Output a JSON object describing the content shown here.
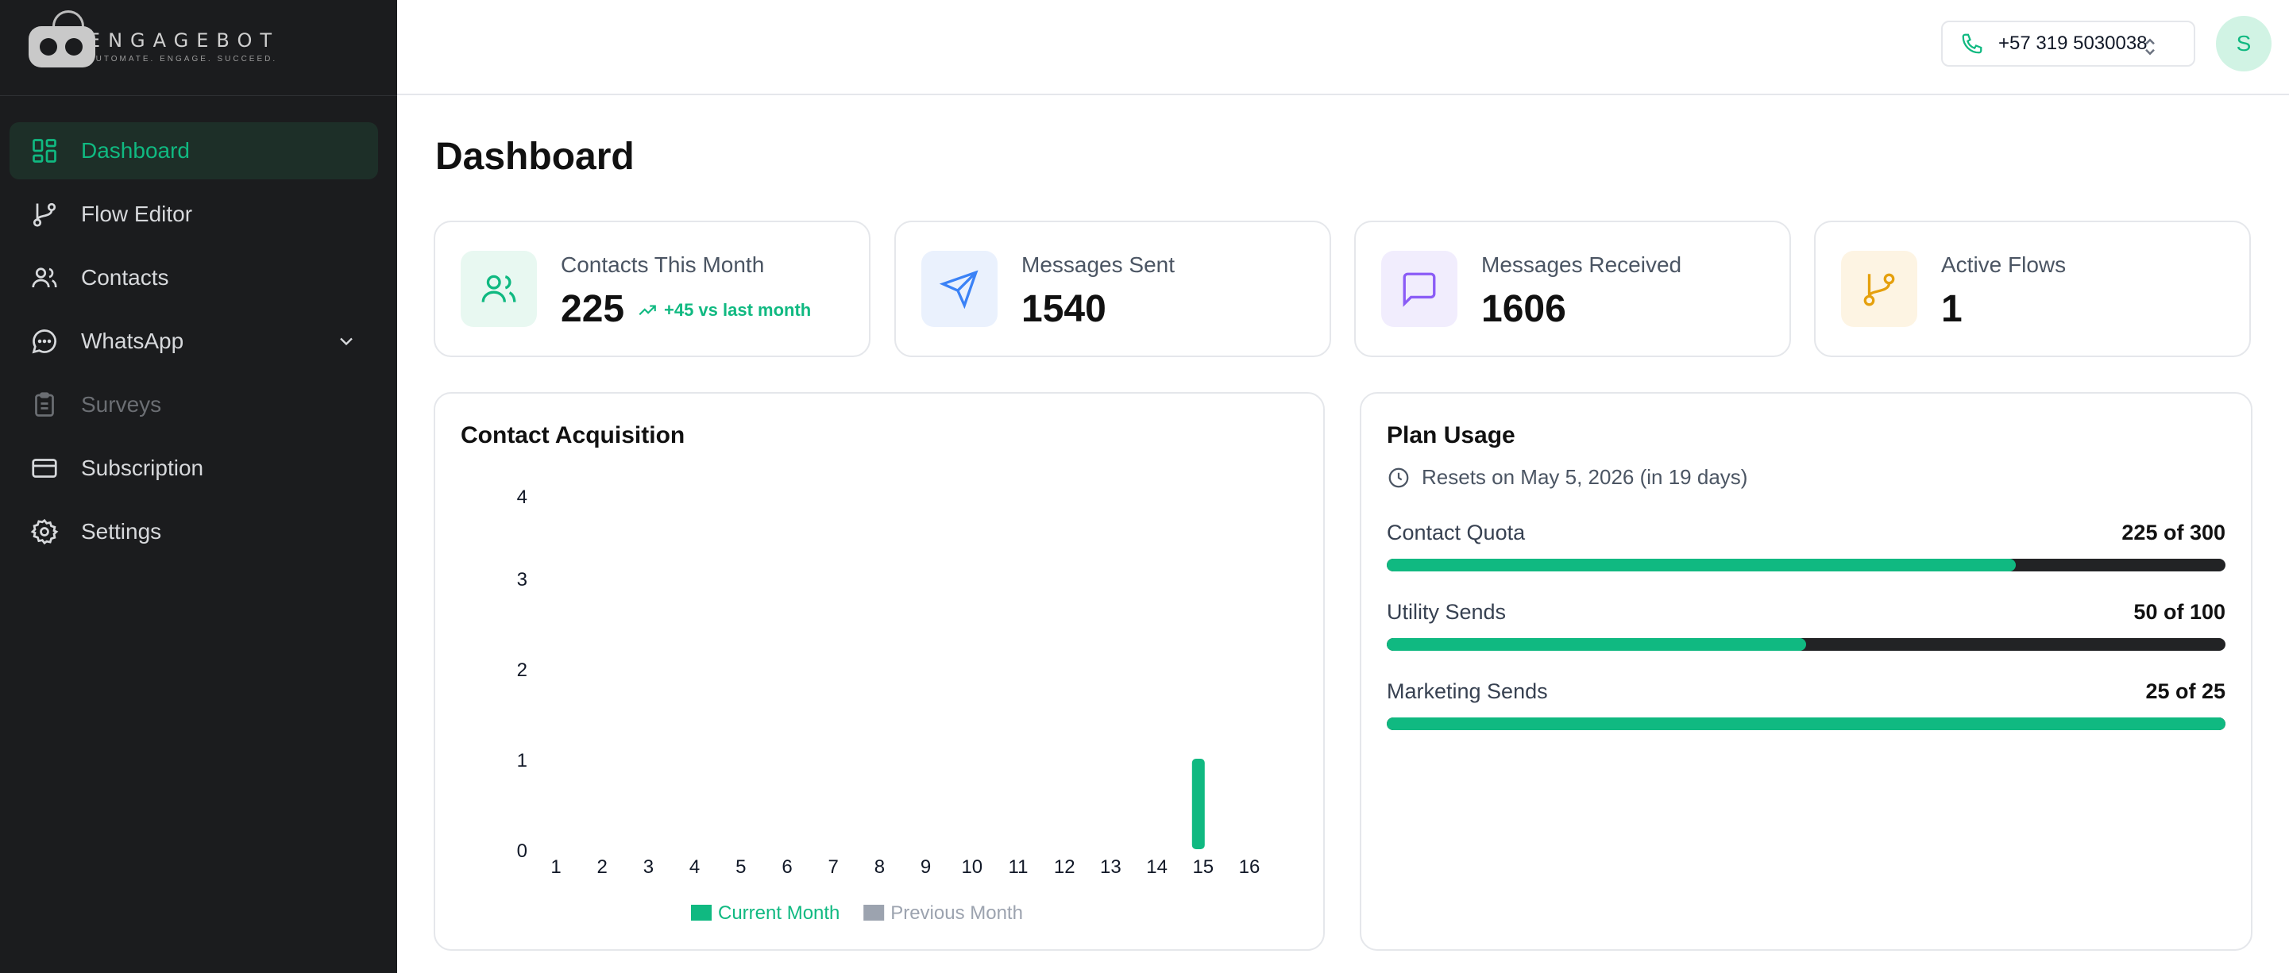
{
  "brand": {
    "name": "ENGAGEBOT",
    "tagline": "AUTOMATE. ENGAGE. SUCCEED."
  },
  "sidebar": {
    "items": [
      {
        "label": "Dashboard",
        "icon": "dashboard-icon",
        "active": true
      },
      {
        "label": "Flow Editor",
        "icon": "git-branch-icon"
      },
      {
        "label": "Contacts",
        "icon": "users-icon"
      },
      {
        "label": "WhatsApp",
        "icon": "chat-bubble-icon",
        "expandable": true
      },
      {
        "label": "Surveys",
        "icon": "clipboard-icon",
        "disabled": true
      },
      {
        "label": "Subscription",
        "icon": "credit-card-icon"
      },
      {
        "label": "Settings",
        "icon": "gear-icon"
      }
    ]
  },
  "header": {
    "phone": "+57 319 5030038",
    "avatar_initial": "S"
  },
  "page": {
    "title": "Dashboard"
  },
  "stats": [
    {
      "label": "Contacts This Month",
      "value": "225",
      "delta": "+45 vs last month",
      "icon": "users-icon",
      "color": "#10b981",
      "bg": "#e8f8f1"
    },
    {
      "label": "Messages Sent",
      "value": "1540",
      "icon": "send-icon",
      "color": "#3b82f6",
      "bg": "#eaf1fd"
    },
    {
      "label": "Messages Received",
      "value": "1606",
      "icon": "message-square-icon",
      "color": "#8b5cf6",
      "bg": "#f1edfd"
    },
    {
      "label": "Active Flows",
      "value": "1",
      "icon": "git-branch-icon",
      "color": "#e5a00d",
      "bg": "#fdf4e3"
    }
  ],
  "acquisition": {
    "title": "Contact Acquisition",
    "chart_data": {
      "type": "bar",
      "categories": [
        "1",
        "2",
        "3",
        "4",
        "5",
        "6",
        "7",
        "8",
        "9",
        "10",
        "11",
        "12",
        "13",
        "14",
        "15",
        "16"
      ],
      "series": [
        {
          "name": "Current Month",
          "values": [
            0,
            0,
            0,
            0,
            0,
            0,
            0,
            0,
            0,
            0,
            0,
            0,
            0,
            0,
            1,
            0
          ],
          "color": "#10b981"
        },
        {
          "name": "Previous Month",
          "values": [
            0,
            0,
            0,
            0,
            0,
            0,
            0,
            0,
            0,
            0,
            0,
            0,
            0,
            0,
            0,
            0
          ],
          "color": "#9ca3af"
        }
      ],
      "y_ticks": [
        "0",
        "1",
        "2",
        "3",
        "4"
      ],
      "ylim": [
        0,
        4
      ],
      "legend": "bottom",
      "grid": false
    }
  },
  "plan": {
    "title": "Plan Usage",
    "reset_text": "Resets on May 5, 2026 (in 19 days)",
    "rows": [
      {
        "label": "Contact Quota",
        "value": "225 of 300",
        "fraction": 0.75
      },
      {
        "label": "Utility Sends",
        "value": "50 of 100",
        "fraction": 0.5
      },
      {
        "label": "Marketing Sends",
        "value": "25 of 25",
        "fraction": 1.0
      }
    ]
  },
  "colors": {
    "accent": "#10b981",
    "sidebar_bg": "#1b1c1e",
    "bar_track": "#222325"
  }
}
